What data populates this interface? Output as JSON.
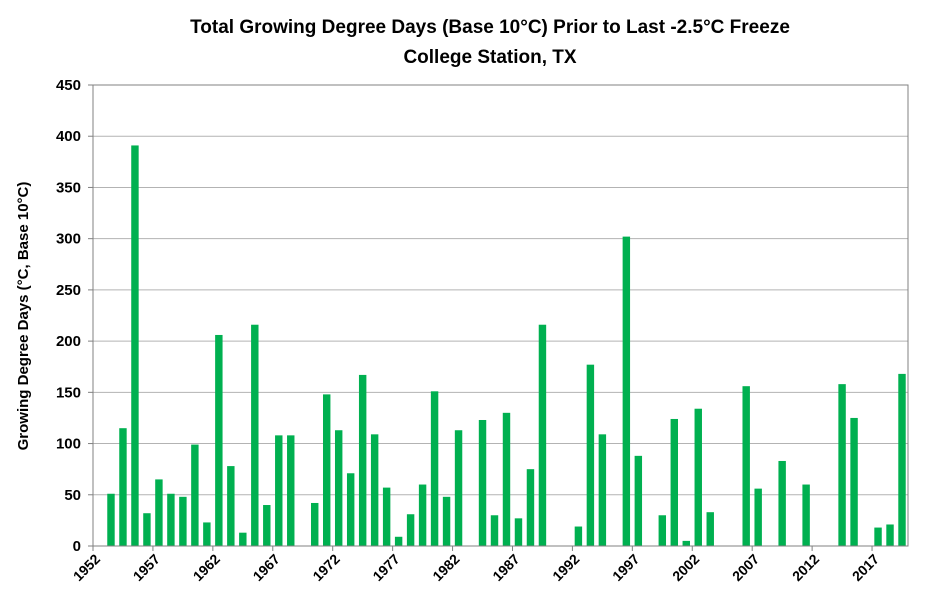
{
  "chart_data": {
    "type": "bar",
    "title": "Total Growing Degree Days (Base 10°C) Prior to Last -2.5°C Freeze",
    "subtitle": "College Station, TX",
    "xlabel": "",
    "ylabel": "Growing Degree Days (°C, Base 10°C)",
    "ylim": [
      0,
      450
    ],
    "yticks": [
      0,
      50,
      100,
      150,
      200,
      250,
      300,
      350,
      400,
      450
    ],
    "xticks": [
      "1952",
      "1957",
      "1962",
      "1967",
      "1972",
      "1977",
      "1982",
      "1987",
      "1992",
      "1997",
      "2002",
      "2007",
      "2012",
      "2017"
    ],
    "grid": true,
    "bar_color": "#00b050",
    "categories": [
      1952,
      1953,
      1954,
      1955,
      1956,
      1957,
      1958,
      1959,
      1960,
      1961,
      1962,
      1963,
      1964,
      1965,
      1966,
      1967,
      1968,
      1969,
      1970,
      1971,
      1972,
      1973,
      1974,
      1975,
      1976,
      1977,
      1978,
      1979,
      1980,
      1981,
      1982,
      1983,
      1984,
      1985,
      1986,
      1987,
      1988,
      1989,
      1990,
      1991,
      1992,
      1993,
      1994,
      1995,
      1996,
      1997,
      1998,
      1999,
      2000,
      2001,
      2002,
      2003,
      2004,
      2005,
      2006,
      2007,
      2008,
      2009,
      2010,
      2011,
      2012,
      2013,
      2014,
      2015,
      2016,
      2017,
      2018,
      2019
    ],
    "values": [
      0,
      51,
      115,
      391,
      32,
      65,
      51,
      48,
      99,
      23,
      206,
      78,
      13,
      216,
      40,
      108,
      108,
      0,
      42,
      148,
      113,
      71,
      167,
      109,
      57,
      9,
      31,
      60,
      151,
      48,
      113,
      0,
      123,
      30,
      130,
      27,
      75,
      216,
      0,
      0,
      19,
      177,
      109,
      0,
      302,
      88,
      0,
      30,
      124,
      5,
      134,
      33,
      0,
      0,
      156,
      56,
      0,
      83,
      0,
      60,
      0,
      0,
      158,
      125,
      0,
      18,
      21,
      168
    ]
  }
}
